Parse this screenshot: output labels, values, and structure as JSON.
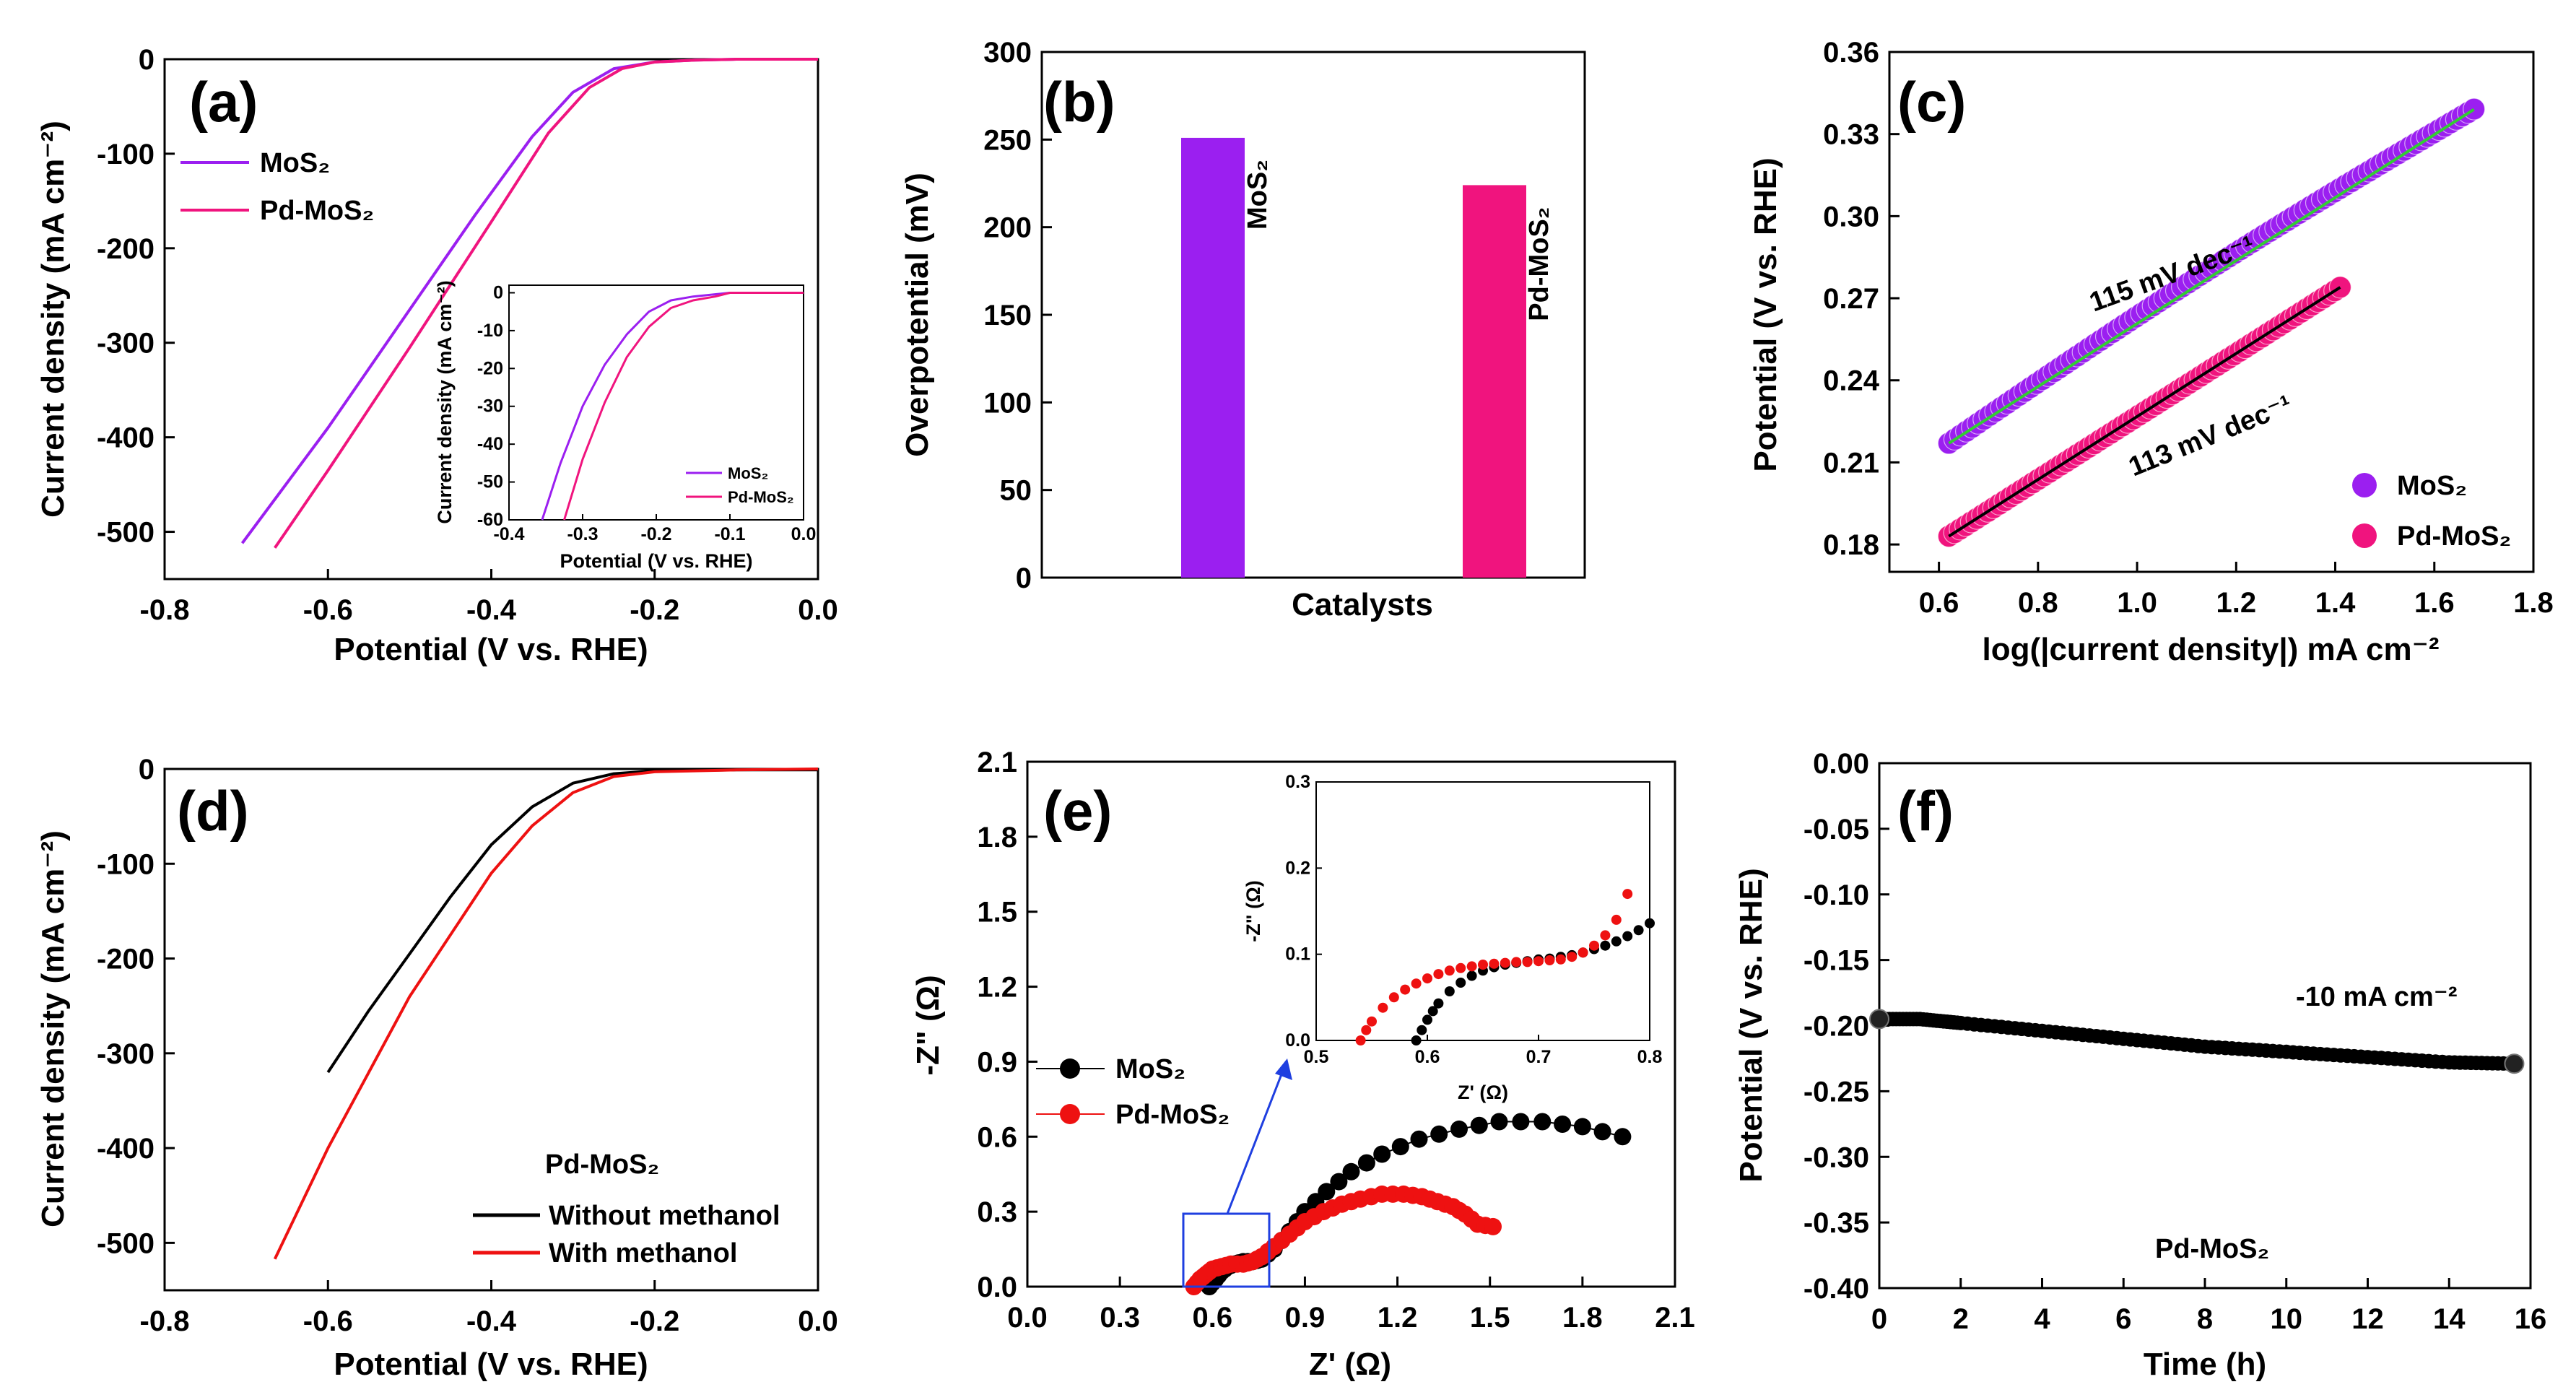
{
  "colors": {
    "mos2": "#9B1FF0",
    "pdmos2": "#F0147E",
    "black": "#000000",
    "red": "#EE1111",
    "green": "#33CC33",
    "blue": "#1F3FE0",
    "axis": "#000000"
  },
  "chart_data": [
    {
      "panel": "(a)",
      "type": "line",
      "xlabel": "Potential (V vs. RHE)",
      "ylabel": "Current density (mA cm⁻²)",
      "xlim": [
        -0.8,
        0.0
      ],
      "ylim": [
        -550,
        0
      ],
      "xticks": [
        "-0.8",
        "-0.6",
        "-0.4",
        "-0.2",
        "0.0"
      ],
      "yticks": [
        "0",
        "-100",
        "-200",
        "-300",
        "-400",
        "-500"
      ],
      "series": [
        {
          "name": "MoS₂",
          "color_key": "mos2",
          "x": [
            -0.705,
            -0.6,
            -0.5,
            -0.42,
            -0.35,
            -0.3,
            -0.25,
            -0.2,
            -0.15,
            -0.1,
            0.0
          ],
          "y": [
            -512,
            -390,
            -265,
            -165,
            -82,
            -35,
            -10,
            -3,
            -1,
            0,
            0
          ]
        },
        {
          "name": "Pd-MoS₂",
          "color_key": "pdmos2",
          "x": [
            -0.665,
            -0.6,
            -0.5,
            -0.4,
            -0.33,
            -0.28,
            -0.24,
            -0.2,
            -0.15,
            -0.1,
            0.0
          ],
          "y": [
            -517,
            -435,
            -305,
            -172,
            -78,
            -30,
            -10,
            -3,
            -1,
            0,
            0
          ]
        }
      ],
      "legend": [
        "MoS₂",
        "Pd-MoS₂"
      ],
      "inset": {
        "xlabel": "Potential (V vs. RHE)",
        "ylabel": "Current density (mA cm⁻²)",
        "xlim": [
          -0.4,
          0.0
        ],
        "ylim": [
          -60,
          2
        ],
        "xticks": [
          "-0.4",
          "-0.3",
          "-0.2",
          "-0.1",
          "0.0"
        ],
        "yticks": [
          "0",
          "-10",
          "-20",
          "-30",
          "-40",
          "-50",
          "-60"
        ],
        "series": [
          {
            "name": "MoS₂",
            "color_key": "mos2",
            "x": [
              -0.355,
              -0.33,
              -0.3,
              -0.27,
              -0.24,
              -0.21,
              -0.18,
              -0.15,
              -0.1,
              0.0
            ],
            "y": [
              -60,
              -45,
              -30,
              -19,
              -11,
              -5,
              -2,
              -1,
              0,
              0
            ]
          },
          {
            "name": "Pd-MoS₂",
            "color_key": "pdmos2",
            "x": [
              -0.325,
              -0.3,
              -0.27,
              -0.24,
              -0.21,
              -0.18,
              -0.15,
              -0.12,
              -0.1,
              0.0
            ],
            "y": [
              -60,
              -44,
              -29,
              -17,
              -9,
              -4,
              -2,
              -1,
              0,
              0
            ]
          }
        ],
        "legend": [
          "MoS₂",
          "Pd-MoS₂"
        ]
      }
    },
    {
      "panel": "(b)",
      "type": "bar",
      "xlabel": "Catalysts",
      "ylabel": "Overpotential (mV)",
      "ylim": [
        0,
        300
      ],
      "yticks": [
        "0",
        "50",
        "100",
        "150",
        "200",
        "250",
        "300"
      ],
      "categories": [
        "MoS₂",
        "Pd-MoS₂"
      ],
      "values": [
        251,
        224
      ],
      "color_keys": [
        "mos2",
        "pdmos2"
      ]
    },
    {
      "panel": "(c)",
      "type": "scatter",
      "xlabel": "log(|current density|) mA cm⁻²",
      "ylabel": "Potential (V vs. RHE)",
      "xlim": [
        0.5,
        1.8
      ],
      "ylim": [
        0.17,
        0.36
      ],
      "xticks": [
        "0.6",
        "0.8",
        "1.0",
        "1.2",
        "1.4",
        "1.6",
        "1.8"
      ],
      "yticks": [
        "0.18",
        "0.21",
        "0.24",
        "0.27",
        "0.30",
        "0.33",
        "0.36"
      ],
      "series": [
        {
          "name": "MoS₂",
          "color_key": "mos2",
          "x_range": [
            0.62,
            1.68
          ],
          "y_range": [
            0.217,
            0.339
          ],
          "fit_color_key": "green"
        },
        {
          "name": "Pd-MoS₂",
          "color_key": "pdmos2",
          "x_range": [
            0.62,
            1.41
          ],
          "y_range": [
            0.183,
            0.274
          ],
          "fit_color_key": "black"
        }
      ],
      "annotations": [
        "115 mV dec⁻¹",
        "113 mV dec⁻¹"
      ],
      "legend": [
        "MoS₂",
        "Pd-MoS₂"
      ]
    },
    {
      "panel": "(d)",
      "type": "line",
      "xlabel": "Potential (V vs. RHE)",
      "ylabel": "Current density (mA cm⁻²)",
      "xlim": [
        -0.8,
        0.0
      ],
      "ylim": [
        -550,
        0
      ],
      "xticks": [
        "-0.8",
        "-0.6",
        "-0.4",
        "-0.2",
        "0.0"
      ],
      "yticks": [
        "0",
        "-100",
        "-200",
        "-300",
        "-400",
        "-500"
      ],
      "series": [
        {
          "name": "Without methanol",
          "color_key": "black",
          "x": [
            -0.6,
            -0.55,
            -0.5,
            -0.45,
            -0.4,
            -0.35,
            -0.3,
            -0.25,
            -0.2,
            -0.1,
            0.0
          ],
          "y": [
            -320,
            -255,
            -195,
            -135,
            -80,
            -40,
            -15,
            -5,
            -2,
            -1,
            -1
          ]
        },
        {
          "name": "With methanol",
          "color_key": "red",
          "x": [
            -0.665,
            -0.6,
            -0.5,
            -0.4,
            -0.35,
            -0.3,
            -0.25,
            -0.2,
            -0.1,
            0.0
          ],
          "y": [
            -517,
            -400,
            -240,
            -110,
            -60,
            -25,
            -8,
            -3,
            -1,
            0
          ]
        }
      ],
      "annotations": [
        "Pd-MoS₂"
      ],
      "legend": [
        "Without methanol",
        "With methanol"
      ]
    },
    {
      "panel": "(e)",
      "type": "scatter",
      "xlabel": "Z' (Ω)",
      "ylabel": "-Z\" (Ω)",
      "xlim": [
        0,
        2.1
      ],
      "ylim": [
        0,
        2.1
      ],
      "xticks": [
        "0.0",
        "0.3",
        "0.6",
        "0.9",
        "1.2",
        "1.5",
        "1.8",
        "2.1"
      ],
      "yticks": [
        "0.0",
        "0.3",
        "0.6",
        "0.9",
        "1.2",
        "1.5",
        "1.8",
        "2.1"
      ],
      "series": [
        {
          "name": "MoS₂",
          "color_key": "black",
          "x": [
            0.59,
            0.61,
            0.63,
            0.65,
            0.67,
            0.7,
            0.73,
            0.76,
            0.8,
            0.85,
            0.9,
            0.97,
            1.05,
            1.15,
            1.27,
            1.4,
            1.53,
            1.67,
            1.8,
            1.93
          ],
          "y": [
            0.0,
            0.03,
            0.06,
            0.08,
            0.09,
            0.1,
            0.1,
            0.11,
            0.15,
            0.22,
            0.3,
            0.38,
            0.46,
            0.53,
            0.59,
            0.63,
            0.66,
            0.66,
            0.64,
            0.6
          ]
        },
        {
          "name": "Pd-MoS₂",
          "color_key": "red",
          "x": [
            0.54,
            0.56,
            0.58,
            0.6,
            0.63,
            0.66,
            0.7,
            0.73,
            0.76,
            0.8,
            0.85,
            0.9,
            0.96,
            1.02,
            1.08,
            1.15,
            1.22,
            1.28,
            1.33,
            1.38,
            1.42,
            1.46,
            1.51
          ],
          "y": [
            0.0,
            0.03,
            0.05,
            0.07,
            0.08,
            0.09,
            0.09,
            0.1,
            0.12,
            0.16,
            0.21,
            0.26,
            0.3,
            0.33,
            0.35,
            0.37,
            0.37,
            0.36,
            0.34,
            0.32,
            0.29,
            0.25,
            0.24
          ]
        }
      ],
      "legend": [
        "MoS₂",
        "Pd-MoS₂"
      ],
      "inset": {
        "xlabel": "Z' (Ω)",
        "ylabel": "-Z\" (Ω)",
        "xlim": [
          0.5,
          0.8
        ],
        "ylim": [
          0,
          0.3
        ],
        "xticks": [
          "0.5",
          "0.6",
          "0.7",
          "0.8"
        ],
        "yticks": [
          "0.0",
          "0.1",
          "0.2",
          "0.3"
        ],
        "series": [
          {
            "name": "MoS₂",
            "color_key": "black",
            "x": [
              0.59,
              0.595,
              0.6,
              0.605,
              0.61,
              0.62,
              0.63,
              0.64,
              0.65,
              0.66,
              0.67,
              0.68,
              0.69,
              0.7,
              0.71,
              0.72,
              0.73,
              0.74,
              0.75,
              0.76,
              0.77,
              0.78,
              0.79,
              0.8
            ],
            "y": [
              0.0,
              0.012,
              0.024,
              0.034,
              0.043,
              0.057,
              0.067,
              0.075,
              0.081,
              0.085,
              0.088,
              0.09,
              0.092,
              0.094,
              0.095,
              0.097,
              0.099,
              0.102,
              0.106,
              0.11,
              0.115,
              0.121,
              0.128,
              0.136
            ]
          },
          {
            "name": "Pd-MoS₂",
            "color_key": "red",
            "x": [
              0.54,
              0.545,
              0.55,
              0.56,
              0.57,
              0.58,
              0.59,
              0.6,
              0.61,
              0.62,
              0.63,
              0.64,
              0.65,
              0.66,
              0.67,
              0.68,
              0.69,
              0.7,
              0.71,
              0.72,
              0.73,
              0.74,
              0.75,
              0.76,
              0.77,
              0.78
            ],
            "y": [
              0.0,
              0.012,
              0.022,
              0.038,
              0.05,
              0.059,
              0.066,
              0.072,
              0.077,
              0.081,
              0.084,
              0.086,
              0.088,
              0.089,
              0.09,
              0.091,
              0.091,
              0.092,
              0.093,
              0.094,
              0.097,
              0.102,
              0.11,
              0.122,
              0.14,
              0.17
            ]
          }
        ]
      }
    },
    {
      "panel": "(f)",
      "type": "scatter",
      "xlabel": "Time (h)",
      "ylabel": "Potential (V vs. RHE)",
      "xlim": [
        0,
        16
      ],
      "ylim": [
        -0.4,
        0.0
      ],
      "xticks": [
        "0",
        "2",
        "4",
        "6",
        "8",
        "10",
        "12",
        "14",
        "16"
      ],
      "yticks": [
        "0.00",
        "-0.05",
        "-0.10",
        "-0.15",
        "-0.20",
        "-0.25",
        "-0.30",
        "-0.35",
        "-0.40"
      ],
      "series": [
        {
          "name": "Pd-MoS₂",
          "color_key": "black",
          "x": [
            0,
            1,
            2,
            4,
            6,
            8,
            10,
            12,
            14,
            15.6
          ],
          "y": [
            -0.195,
            -0.195,
            -0.198,
            -0.204,
            -0.21,
            -0.216,
            -0.22,
            -0.224,
            -0.228,
            -0.229
          ]
        }
      ],
      "annotations": [
        "-10 mA cm⁻²",
        "Pd-MoS₂"
      ]
    }
  ]
}
